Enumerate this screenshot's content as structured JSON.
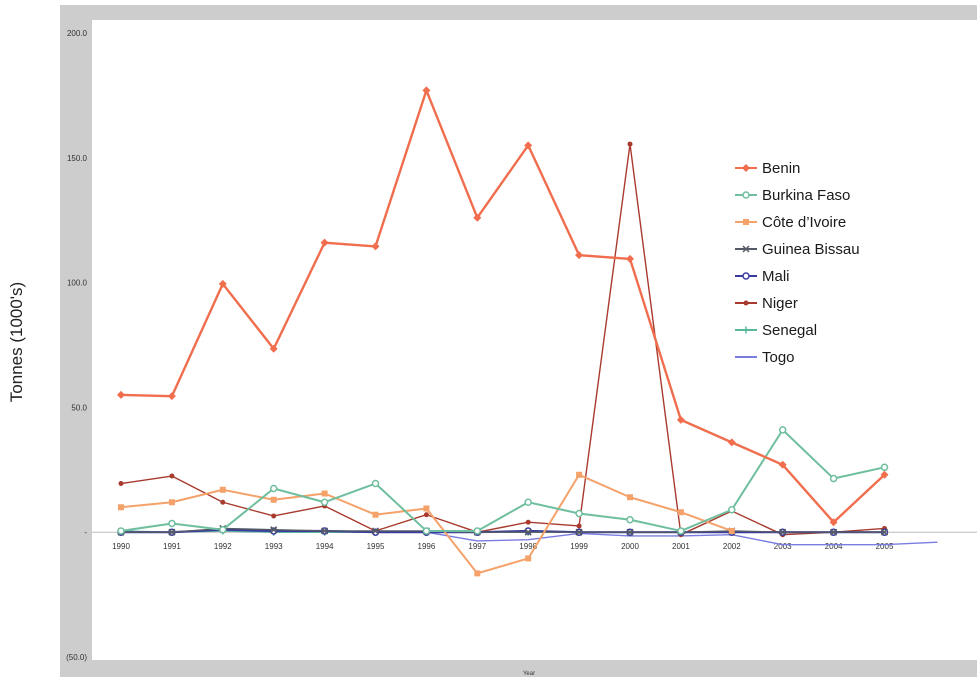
{
  "chart_data": {
    "type": "line",
    "title": "",
    "xlabel": "Year",
    "ylabel": "Tonnes (1000's)",
    "ylim": [
      -50,
      200
    ],
    "yticks": [
      200,
      150,
      100,
      50,
      0,
      -50
    ],
    "ytick_labels": [
      "200.0",
      "150.0",
      "100.0",
      "50.0",
      "-",
      "(50.0)"
    ],
    "x": [
      1990,
      1991,
      1992,
      1993,
      1994,
      1995,
      1996,
      1997,
      1998,
      1999,
      2000,
      2001,
      2002,
      2003,
      2004,
      2005
    ],
    "x_labels": [
      "1990",
      "1991",
      "1992",
      "1993",
      "1994",
      "1995",
      "1996",
      "1997",
      "1998",
      "1999",
      "2000",
      "2001",
      "2002",
      "2003",
      "2004",
      "2005"
    ],
    "grid": false,
    "legend_position": "right",
    "series": [
      {
        "name": "Benin",
        "color": "#f06d4e",
        "marker": "diamond",
        "values": [
          55,
          54.5,
          99.5,
          73.5,
          116,
          114.5,
          177,
          126,
          155,
          111,
          109.5,
          45,
          36,
          27,
          4,
          23
        ]
      },
      {
        "name": "Burkina Faso",
        "color": "#6fbf9e",
        "marker": "circle",
        "values": [
          0.5,
          3.5,
          1,
          17.5,
          12,
          19.5,
          0.5,
          0.5,
          12,
          7.5,
          5,
          0.5,
          9,
          41,
          21.5,
          26
        ]
      },
      {
        "name": "Côte d’Ivoire",
        "color": "#f4a26a",
        "marker": "square",
        "values": [
          10,
          12,
          17,
          13,
          15.5,
          7,
          9.5,
          -16.5,
          -10.5,
          23,
          14,
          8,
          0.5,
          null,
          null,
          null
        ]
      },
      {
        "name": "Guinea Bissau",
        "color": "#555b66",
        "marker": "x",
        "values": [
          0,
          0,
          1.5,
          1,
          0.5,
          0.5,
          0.5,
          0,
          0,
          0,
          0,
          0,
          0.5,
          0,
          0,
          0
        ]
      },
      {
        "name": "Mali",
        "color": "#3a3b9e",
        "marker": "circle",
        "values": [
          0,
          0,
          1,
          0.5,
          0.5,
          0,
          0,
          0,
          0.5,
          0,
          0,
          0,
          0,
          0,
          0,
          0
        ]
      },
      {
        "name": "Niger",
        "color": "#a83a2e",
        "marker": "dot",
        "values": [
          19.5,
          22.5,
          12,
          6.5,
          10.5,
          0.5,
          7,
          0,
          4,
          2.5,
          155.5,
          -1,
          8.5,
          -1,
          0,
          1.5
        ]
      },
      {
        "name": "Senegal",
        "color": "#57b89b",
        "marker": "plus",
        "values": [
          0.5,
          0,
          0.5,
          0,
          0,
          0,
          0,
          0,
          0,
          0,
          0,
          0,
          0,
          0,
          0,
          0
        ]
      },
      {
        "name": "Togo",
        "color": "#7a7de0",
        "marker": "none",
        "values": [
          0,
          0,
          0.5,
          0,
          0,
          0,
          0,
          -3.5,
          -3,
          -0.5,
          -1.5,
          -1.5,
          -1,
          -5,
          -5,
          -5
        ]
      }
    ]
  }
}
